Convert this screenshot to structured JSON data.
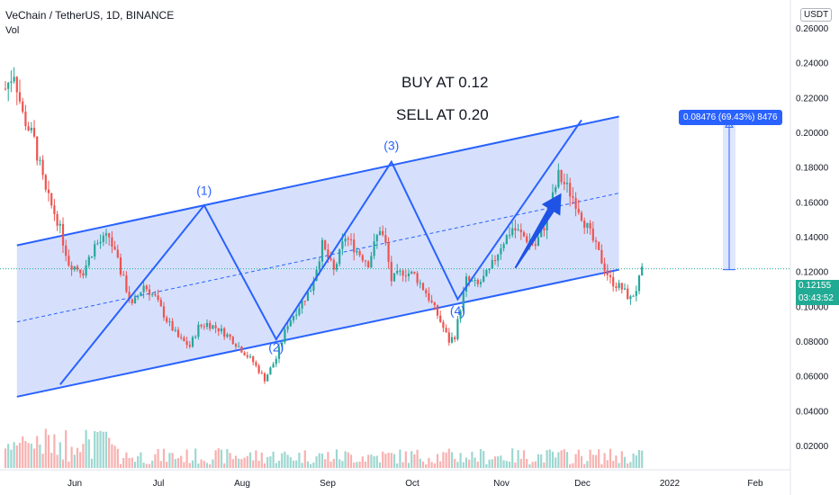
{
  "header": {
    "symbol_title": "VeChain / TetherUS, 1D, BINANCE",
    "volume_label": "Vol",
    "currency": "USDT"
  },
  "annotations": {
    "buy": "BUY AT 0.12",
    "sell": "SELL AT 0.20",
    "wave_labels": [
      "(1)",
      "(2)",
      "(3)",
      "(4)"
    ],
    "measure": "0.08476 (69.43%) 8476"
  },
  "price_tags": {
    "last_price": "0.12155",
    "countdown": "03:43:52"
  },
  "colors": {
    "up": "#26a69a",
    "down": "#ef5350",
    "channel_line": "#2962ff",
    "channel_fill": "#c8d6fb",
    "arrow": "#1e53e5",
    "last_price": "#22ab94"
  },
  "chart_data": {
    "type": "candlestick",
    "y_axis_ticks": [
      0.26,
      0.24,
      0.22,
      0.2,
      0.18,
      0.16,
      0.14,
      0.12,
      0.1,
      0.08,
      0.06,
      0.04,
      0.02
    ],
    "y_axis_tick_labels": [
      "0.26000",
      "0.24000",
      "0.22000",
      "0.20000",
      "0.18000",
      "0.16000",
      "0.14000",
      "0.12000",
      "0.10000",
      "0.08000",
      "0.06000",
      "0.04000",
      "0.02000"
    ],
    "x_axis_labels": [
      "Jun",
      "Jul",
      "Aug",
      "Sep",
      "Oct",
      "Nov",
      "Dec",
      "2022",
      "Feb"
    ],
    "ylim": [
      0.006,
      0.276
    ],
    "close_path": [
      [
        0,
        0.225
      ],
      [
        3,
        0.235
      ],
      [
        6,
        0.21
      ],
      [
        10,
        0.195
      ],
      [
        14,
        0.165
      ],
      [
        18,
        0.15
      ],
      [
        22,
        0.125
      ],
      [
        27,
        0.12
      ],
      [
        31,
        0.135
      ],
      [
        36,
        0.14
      ],
      [
        40,
        0.12
      ],
      [
        44,
        0.1
      ],
      [
        48,
        0.112
      ],
      [
        52,
        0.105
      ],
      [
        56,
        0.092
      ],
      [
        60,
        0.082
      ],
      [
        64,
        0.077
      ],
      [
        67,
        0.088
      ],
      [
        70,
        0.09
      ],
      [
        74,
        0.087
      ],
      [
        78,
        0.082
      ],
      [
        82,
        0.075
      ],
      [
        86,
        0.068
      ],
      [
        90,
        0.058
      ],
      [
        94,
        0.07
      ],
      [
        98,
        0.09
      ],
      [
        102,
        0.1
      ],
      [
        106,
        0.11
      ],
      [
        110,
        0.135
      ],
      [
        114,
        0.12
      ],
      [
        118,
        0.14
      ],
      [
        122,
        0.132
      ],
      [
        126,
        0.125
      ],
      [
        130,
        0.145
      ],
      [
        132,
        0.135
      ],
      [
        134,
        0.115
      ],
      [
        138,
        0.12
      ],
      [
        142,
        0.118
      ],
      [
        146,
        0.108
      ],
      [
        150,
        0.095
      ],
      [
        154,
        0.08
      ],
      [
        156,
        0.083
      ],
      [
        160,
        0.115
      ],
      [
        164,
        0.112
      ],
      [
        168,
        0.12
      ],
      [
        172,
        0.135
      ],
      [
        176,
        0.145
      ],
      [
        180,
        0.14
      ],
      [
        184,
        0.135
      ],
      [
        188,
        0.15
      ],
      [
        192,
        0.175
      ],
      [
        195,
        0.168
      ],
      [
        198,
        0.16
      ],
      [
        202,
        0.145
      ],
      [
        206,
        0.13
      ],
      [
        210,
        0.115
      ],
      [
        214,
        0.11
      ],
      [
        217,
        0.104
      ],
      [
        219,
        0.11
      ],
      [
        221,
        0.12
      ]
    ],
    "volume_scale": [
      0,
      1
    ],
    "channel": {
      "upper": [
        [
          4,
          0.135
        ],
        [
          213,
          0.209
        ]
      ],
      "lower": [
        [
          4,
          0.048
        ],
        [
          213,
          0.121
        ]
      ],
      "mid": [
        [
          4,
          0.091
        ],
        [
          213,
          0.165
        ]
      ]
    },
    "wave_path": [
      [
        19,
        0.055
      ],
      [
        69,
        0.158
      ],
      [
        94,
        0.081
      ],
      [
        134,
        0.183
      ],
      [
        157,
        0.104
      ],
      [
        200,
        0.207
      ]
    ],
    "wave_label_points": [
      [
        69,
        0.164
      ],
      [
        94,
        0.074
      ],
      [
        134,
        0.19
      ],
      [
        157,
        0.095
      ]
    ],
    "projection_arrow": [
      [
        177,
        0.122
      ],
      [
        193,
        0.165
      ]
    ],
    "measure_range": [
      0.121,
      0.206
    ],
    "last_price": 0.12155
  }
}
